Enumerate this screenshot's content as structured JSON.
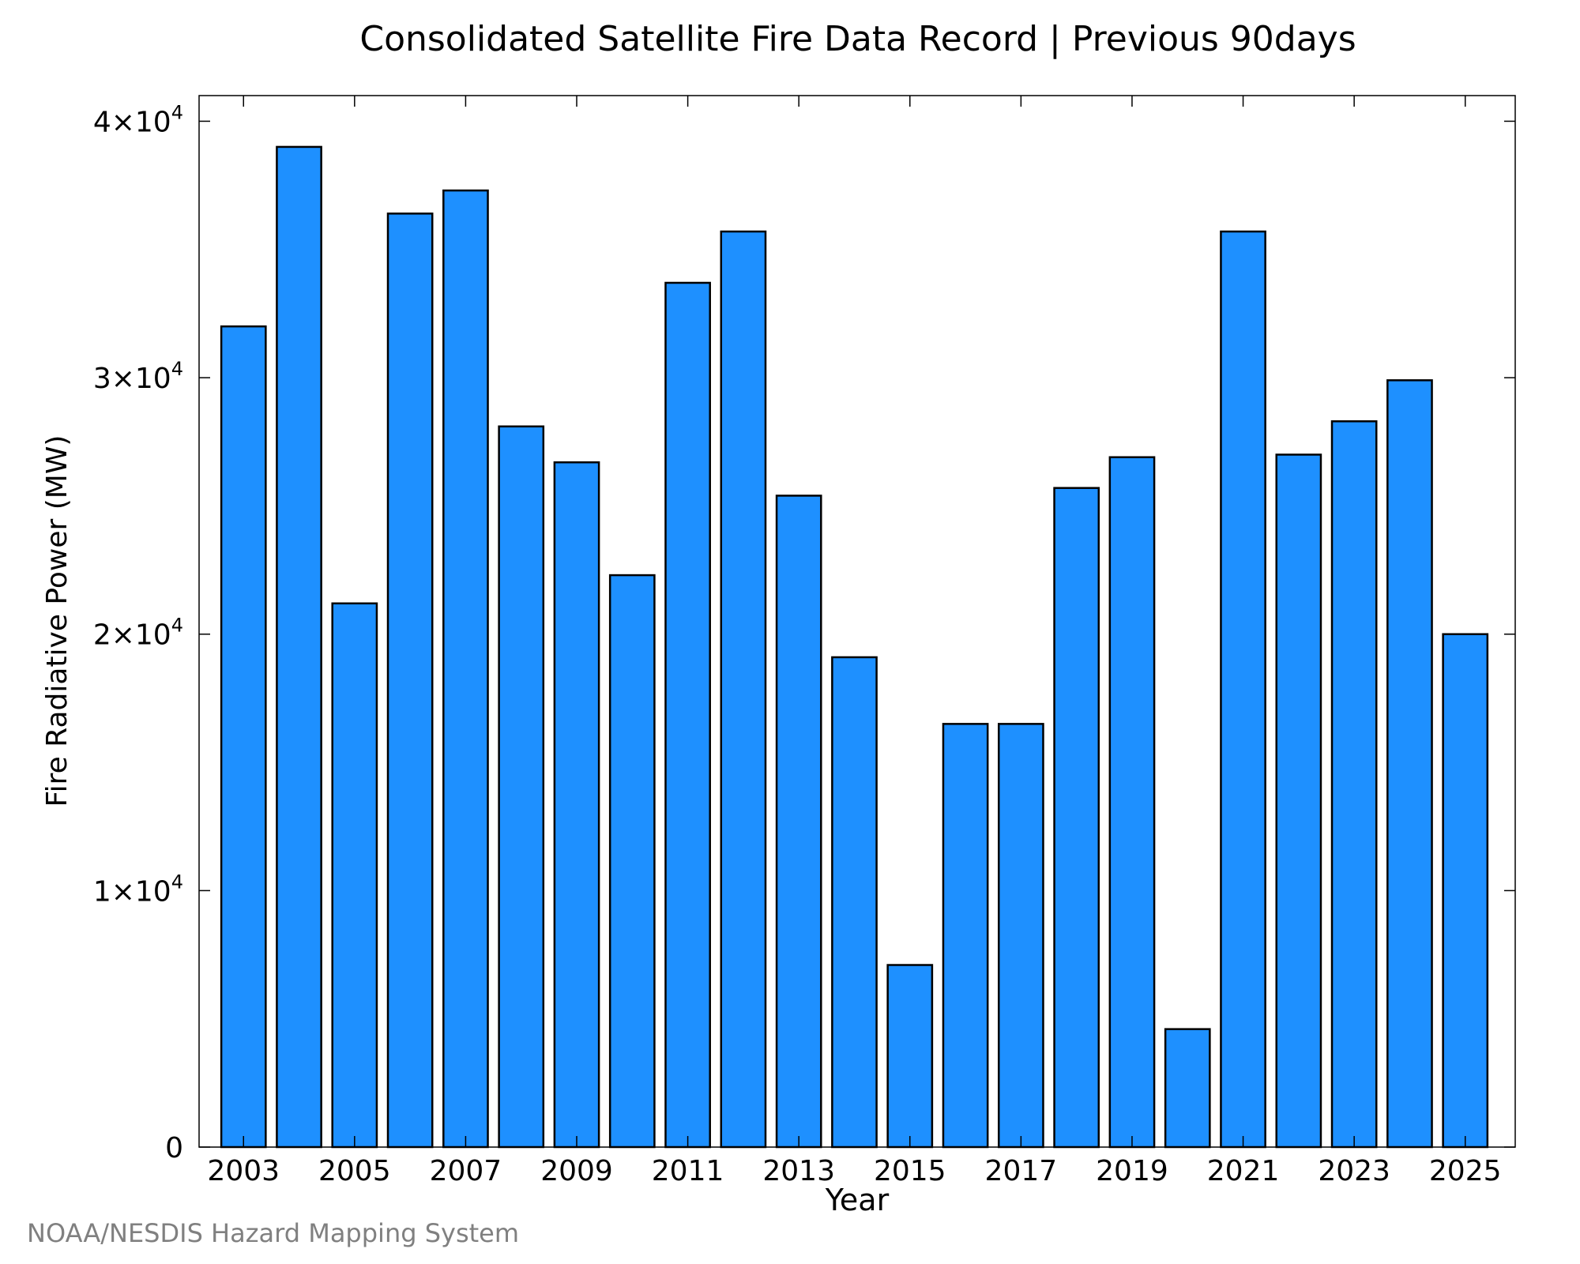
{
  "chart_data": {
    "type": "bar",
    "title": "Consolidated Satellite Fire Data Record | Previous 90days",
    "xlabel": "Year",
    "ylabel": "Fire Radiative Power (MW)",
    "x": [
      2003,
      2004,
      2005,
      2006,
      2007,
      2008,
      2009,
      2010,
      2011,
      2012,
      2013,
      2014,
      2015,
      2016,
      2017,
      2018,
      2019,
      2020,
      2021,
      2022,
      2023,
      2024,
      2025
    ],
    "values": [
      32000,
      39000,
      21200,
      36400,
      37300,
      28100,
      26700,
      22300,
      33700,
      35700,
      25400,
      19100,
      7100,
      16500,
      16500,
      25700,
      26900,
      4600,
      35700,
      27000,
      28300,
      29900,
      20000
    ],
    "xticks": [
      "2003",
      "2005",
      "2007",
      "2009",
      "2011",
      "2013",
      "2015",
      "2017",
      "2019",
      "2021",
      "2023",
      "2025"
    ],
    "yticks": [
      {
        "value": 0,
        "mantissa": "0",
        "exponent": ""
      },
      {
        "value": 10000,
        "mantissa": "1×10",
        "exponent": "4"
      },
      {
        "value": 20000,
        "mantissa": "2×10",
        "exponent": "4"
      },
      {
        "value": 30000,
        "mantissa": "3×10",
        "exponent": "4"
      },
      {
        "value": 40000,
        "mantissa": "4×10",
        "exponent": "4"
      }
    ],
    "xlim": [
      2002.2,
      2025.9
    ],
    "ylim": [
      0,
      41000
    ],
    "grid": false,
    "legend": "none",
    "bar_color": "#1e90ff",
    "edge_color": "#000000"
  },
  "footer": "NOAA/NESDIS Hazard Mapping System"
}
